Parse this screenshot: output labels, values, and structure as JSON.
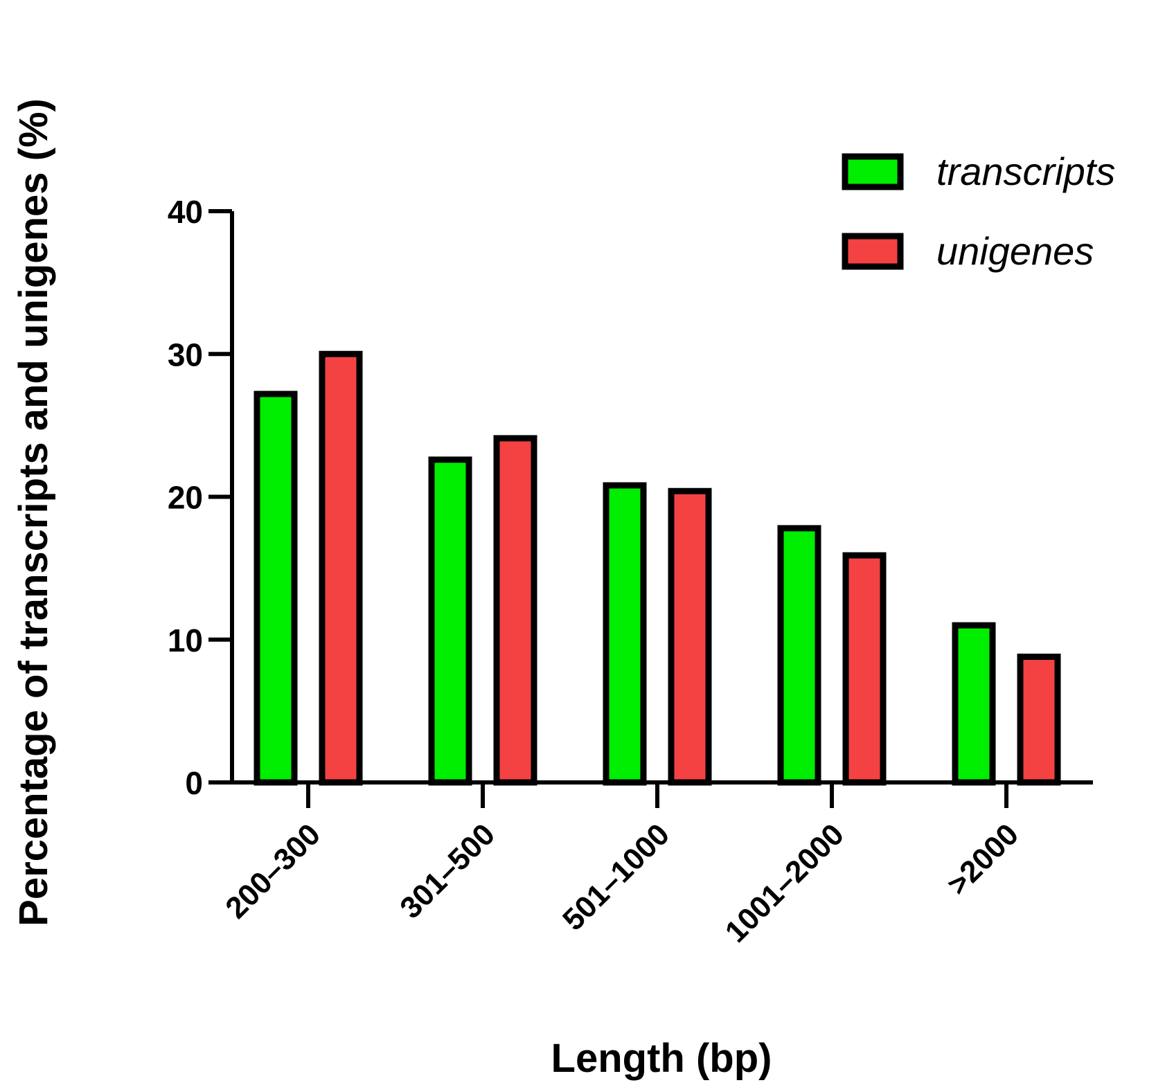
{
  "chart_data": {
    "type": "bar",
    "title": "",
    "xlabel": "Length (bp)",
    "ylabel": "Percentage of transcripts and unigenes (%)",
    "ylim": [
      0,
      40
    ],
    "yticks": [
      0,
      10,
      20,
      30,
      40
    ],
    "categories": [
      "200–300",
      "301–500",
      "501–1000",
      "1001–2000",
      ">2000"
    ],
    "series": [
      {
        "name": "transcripts",
        "color": "#00ee00",
        "values": [
          27.2,
          22.6,
          20.8,
          17.8,
          11.0
        ]
      },
      {
        "name": "unigenes",
        "color": "#f44242",
        "values": [
          30.0,
          24.1,
          20.4,
          15.9,
          8.8
        ]
      }
    ],
    "grid": false,
    "legend": "top-right"
  }
}
